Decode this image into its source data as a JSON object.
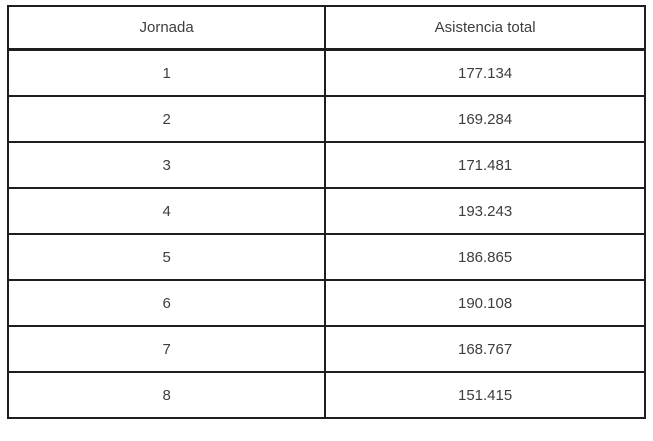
{
  "table": {
    "columns": [
      "Jornada",
      "Asistencia total"
    ],
    "rows": [
      {
        "jornada": "1",
        "asistencia": "177.134"
      },
      {
        "jornada": "2",
        "asistencia": "169.284"
      },
      {
        "jornada": "3",
        "asistencia": "171.481"
      },
      {
        "jornada": "4",
        "asistencia": "193.243"
      },
      {
        "jornada": "5",
        "asistencia": "186.865"
      },
      {
        "jornada": "6",
        "asistencia": "190.108"
      },
      {
        "jornada": "7",
        "asistencia": "168.767"
      },
      {
        "jornada": "8",
        "asistencia": "151.415"
      }
    ],
    "border_color": "#1e1e1e",
    "text_color": "#3d3d3d",
    "background_color": "#ffffff"
  }
}
